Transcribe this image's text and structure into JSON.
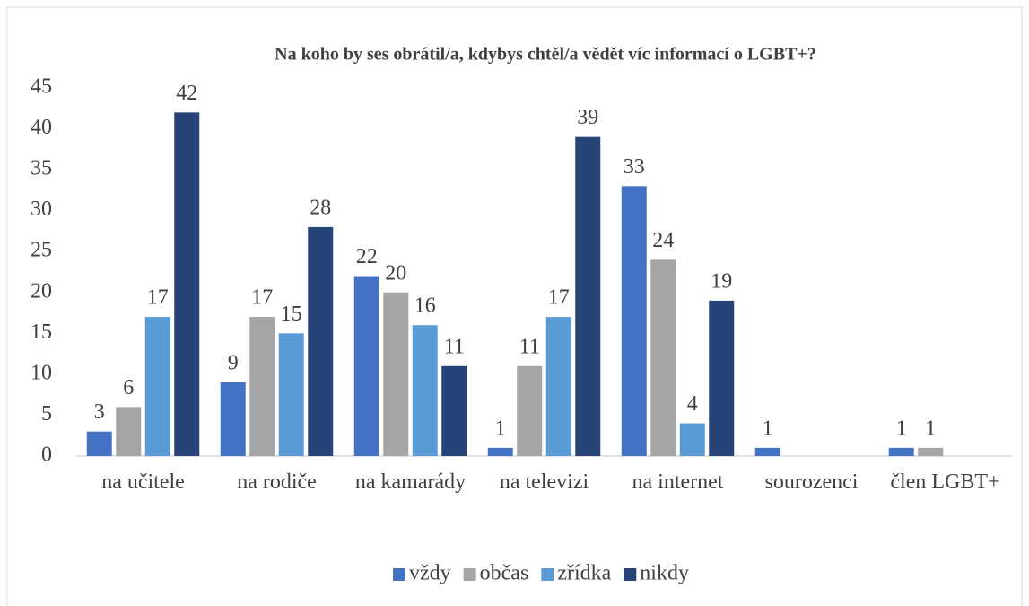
{
  "chart_data": {
    "type": "bar",
    "title": "Na koho by ses obrátil/a, kdybys chtěl/a vědět víc informací o LGBT+?",
    "categories": [
      "na učitele",
      "na rodiče",
      "na kamarády",
      "na televizi",
      "na internet",
      "sourozenci",
      "člen LGBT+"
    ],
    "series": [
      {
        "name": "vždy",
        "color": "#4472c4",
        "values": [
          3,
          9,
          22,
          1,
          33,
          1,
          1
        ]
      },
      {
        "name": "občas",
        "color": "#a5a5a5",
        "values": [
          6,
          17,
          20,
          11,
          24,
          null,
          1
        ]
      },
      {
        "name": "zřídka",
        "color": "#5b9bd5",
        "values": [
          17,
          15,
          16,
          17,
          4,
          null,
          null
        ]
      },
      {
        "name": "nikdy",
        "color": "#264478",
        "values": [
          42,
          28,
          11,
          39,
          19,
          null,
          null
        ]
      }
    ],
    "ylim": [
      0,
      45
    ],
    "yticks": [
      0,
      5,
      10,
      15,
      20,
      25,
      30,
      35,
      40,
      45
    ],
    "grid": false,
    "legend": "bottom"
  }
}
